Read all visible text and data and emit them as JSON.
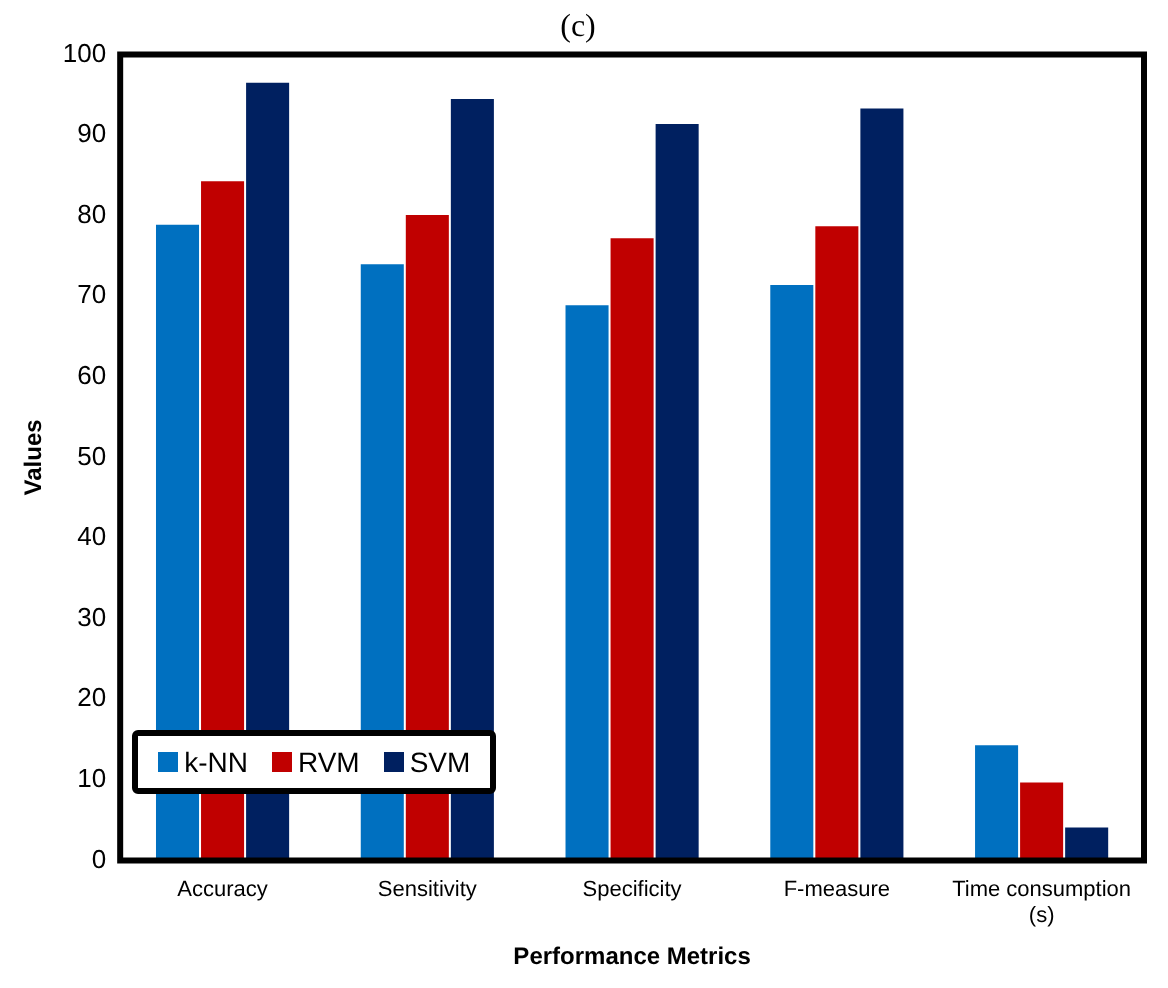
{
  "chart_data": {
    "type": "bar",
    "title": "(c)",
    "xlabel": "Performance Metrics",
    "ylabel": "Values",
    "categories": [
      "Accuracy",
      "Sensitivity",
      "Specificity",
      "F-measure",
      "Time consumption (s)"
    ],
    "series": [
      {
        "name": "k-NN",
        "color": "#0070c0",
        "values": [
          79,
          74.1,
          69,
          71.5,
          14.4
        ]
      },
      {
        "name": "RVM",
        "color": "#c00000",
        "values": [
          84.4,
          80.2,
          77.3,
          78.8,
          9.8
        ]
      },
      {
        "name": "SVM",
        "color": "#002060",
        "values": [
          96.6,
          94.6,
          91.5,
          93.4,
          4.2
        ]
      }
    ],
    "ylim": [
      0,
      100
    ],
    "yticks": [
      0,
      10,
      20,
      30,
      40,
      50,
      60,
      70,
      80,
      90,
      100
    ],
    "grid": false,
    "legend": "bottom left"
  }
}
